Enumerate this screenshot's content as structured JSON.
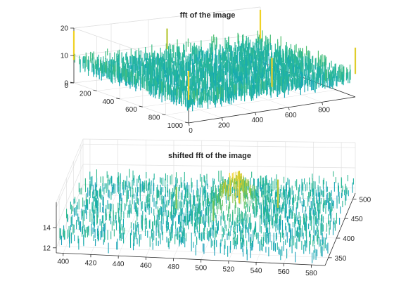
{
  "chart_data": [
    {
      "type": "surface",
      "title": "fft of the image",
      "xlabel": "",
      "ylabel": "",
      "zlabel": "",
      "x_ticks": [
        0,
        200,
        400,
        600,
        800
      ],
      "y_ticks": [
        0,
        200,
        400,
        600,
        800,
        1000
      ],
      "z_ticks": [
        0,
        10,
        20
      ],
      "xlim": [
        0,
        1000
      ],
      "ylim": [
        0,
        1000
      ],
      "zlim": [
        0,
        20
      ],
      "grid": true,
      "colormap": [
        "#2a8fc7",
        "#15aab3",
        "#2ab898",
        "#52c06f",
        "#8cc74a",
        "#c8c732",
        "#f0d225"
      ],
      "baseline_level": 8,
      "peaks": [
        {
          "x": 0,
          "y": 1000,
          "z": 19
        },
        {
          "x": 500,
          "y": 1000,
          "z": 19
        },
        {
          "x": 1000,
          "y": 1000,
          "z": 18
        },
        {
          "x": 1000,
          "y": 0,
          "z": 19
        },
        {
          "x": 0,
          "y": 0,
          "z": 19
        },
        {
          "x": 500,
          "y": 0,
          "z": 16
        }
      ]
    },
    {
      "type": "surface",
      "title": "shifted fft of the image",
      "xlabel": "",
      "ylabel": "",
      "zlabel": "",
      "x_ticks": [
        400,
        420,
        440,
        460,
        480,
        500,
        520,
        540,
        560,
        580
      ],
      "y_ticks": [
        350,
        400,
        450,
        500
      ],
      "z_ticks": [
        12,
        14
      ],
      "xlim": [
        395,
        590
      ],
      "ylim": [
        330,
        515
      ],
      "zlim": [
        11.5,
        16.5
      ],
      "grid": true,
      "colormap": [
        "#2a8fc7",
        "#15aab3",
        "#2ab898",
        "#52c06f",
        "#8cc74a",
        "#c8c732",
        "#f0d225"
      ],
      "peaks": [
        {
          "x": 513,
          "y": 460,
          "z": 15.6
        },
        {
          "x": 470,
          "y": 440,
          "z": 14.6
        },
        {
          "x": 542,
          "y": 450,
          "z": 15.2
        },
        {
          "x": 500,
          "y": 410,
          "z": 14.4
        }
      ]
    }
  ]
}
